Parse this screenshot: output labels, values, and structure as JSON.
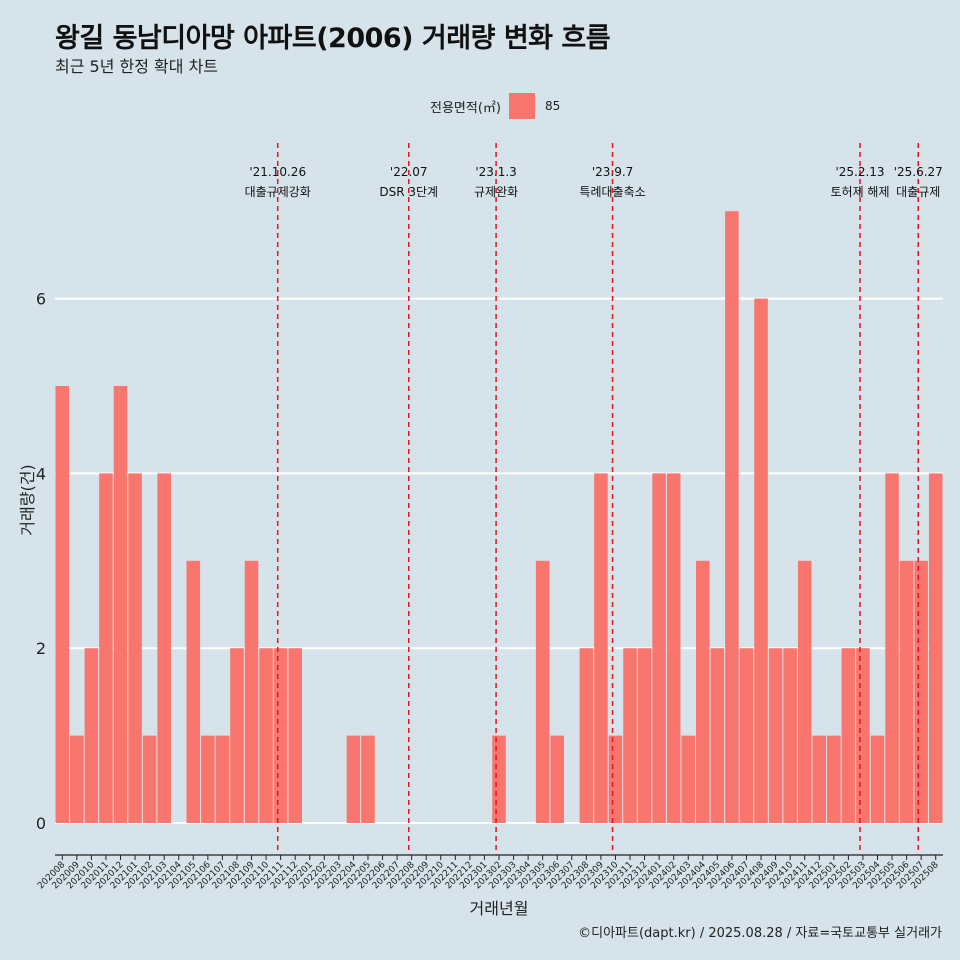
{
  "title": "왕길 동남디아망 아파트(2006) 거래량 변화 흐름",
  "subtitle": "최근 5년 한정 확대 차트",
  "legend": {
    "title": "전용면적(㎡)",
    "label": "85",
    "color": "#f8766d"
  },
  "caption": "©디아파트(dapt.kr) / 2025.08.28 / 자료=국토교통부 실거래가",
  "chart_data": {
    "type": "bar",
    "xlabel": "거래년월",
    "ylabel": "거래량(건)",
    "ylim": [
      0,
      7.3
    ],
    "yticks": [
      0,
      2,
      4,
      6
    ],
    "grid": true,
    "legend_position": "top",
    "bar_color": "#f8766d",
    "categories": [
      "202008",
      "202009",
      "202010",
      "202011",
      "202012",
      "202101",
      "202102",
      "202103",
      "202104",
      "202105",
      "202106",
      "202107",
      "202108",
      "202109",
      "202110",
      "202111",
      "202112",
      "202201",
      "202202",
      "202203",
      "202204",
      "202205",
      "202206",
      "202207",
      "202208",
      "202209",
      "202210",
      "202211",
      "202212",
      "202301",
      "202302",
      "202303",
      "202304",
      "202305",
      "202306",
      "202307",
      "202308",
      "202309",
      "202310",
      "202311",
      "202312",
      "202401",
      "202402",
      "202403",
      "202404",
      "202405",
      "202406",
      "202407",
      "202408",
      "202409",
      "202410",
      "202411",
      "202412",
      "202501",
      "202502",
      "202503",
      "202504",
      "202505",
      "202506",
      "202507",
      "202508"
    ],
    "series": [
      {
        "name": "85",
        "values": [
          5,
          1,
          2,
          4,
          5,
          4,
          1,
          4,
          0,
          3,
          1,
          1,
          2,
          3,
          2,
          2,
          2,
          0,
          0,
          0,
          1,
          1,
          0,
          0,
          0,
          0,
          0,
          0,
          0,
          0,
          1,
          0,
          0,
          3,
          1,
          0,
          2,
          4,
          1,
          2,
          2,
          4,
          4,
          1,
          3,
          2,
          7,
          2,
          6,
          2,
          2,
          3,
          1,
          1,
          2,
          2,
          1,
          4,
          3,
          3,
          4
        ]
      }
    ],
    "annotations": [
      {
        "date": "'21.10.26",
        "text": "대출규제강화",
        "index": 14.8
      },
      {
        "date": "'22.07",
        "text": "DSR 3단계",
        "index": 23.8
      },
      {
        "date": "'23.1.3",
        "text": "규제완화",
        "index": 29.8
      },
      {
        "date": "'23.9.7",
        "text": "특례대출축소",
        "index": 37.8
      },
      {
        "date": "'25.2.13",
        "text": "토허제 해제",
        "index": 54.8
      },
      {
        "date": "'25.6.27",
        "text": "대출규제",
        "index": 58.8
      }
    ]
  }
}
